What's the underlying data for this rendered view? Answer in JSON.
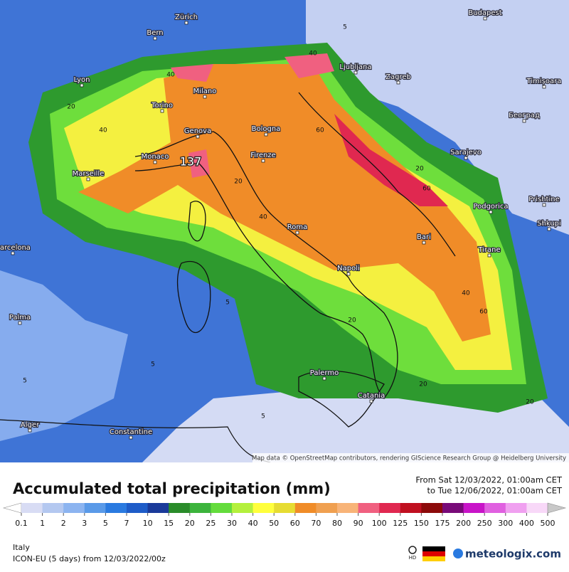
{
  "map": {
    "max_label": "137",
    "cities": [
      "Zürich",
      "Bern",
      "Budapest",
      "Lyon",
      "Milano",
      "Torino",
      "Genova",
      "Bologna",
      "Ljubljana",
      "Zagreb",
      "Timișoara",
      "Београд",
      "Firenze",
      "Monaco",
      "Marseille",
      "Sarajevo",
      "Podgorica",
      "Prishtine",
      "Shkupi",
      "Roma",
      "Tirane",
      "Bari",
      "Napoli",
      "Palma",
      "Palermo",
      "Catania",
      "Alger",
      "Constantine",
      "Barcelona"
    ],
    "contour_labels": [
      "5",
      "20",
      "40",
      "60",
      "40",
      "20",
      "5",
      "40",
      "60",
      "20",
      "40",
      "5",
      "20",
      "60",
      "40",
      "20",
      "5",
      "20",
      "5"
    ],
    "attribution": "Map data © OpenStreetMap contributors, rendering GIScience Research Group @ Heidelberg University"
  },
  "legend": {
    "title": "Accumulated total precipitation (mm)",
    "period_from": "From Sat 12/03/2022, 01:00am CET",
    "period_to": "to Tue 12/06/2022, 01:00am CET",
    "values": [
      0.1,
      1,
      2,
      3,
      5,
      7,
      10,
      15,
      20,
      25,
      30,
      40,
      50,
      60,
      70,
      80,
      90,
      100,
      125,
      150,
      175,
      200,
      250,
      300,
      400,
      500
    ],
    "colors": [
      "#ffffff",
      "#d8dcf4",
      "#b4c8f0",
      "#8cb4f0",
      "#5a9ae8",
      "#2a7ae0",
      "#1e5cc8",
      "#1a3a9a",
      "#2a8c2a",
      "#3cb43c",
      "#64dc3c",
      "#b4f03c",
      "#ffff3c",
      "#e6dc32",
      "#f08c28",
      "#f0a050",
      "#f8b478",
      "#f06080",
      "#e02850",
      "#c01020",
      "#8c0a0a",
      "#780a78",
      "#c814c8",
      "#e060e0",
      "#f0a0f0",
      "#f8d8f8",
      "#c8c8c8"
    ]
  },
  "footer": {
    "region": "Italy",
    "model": "ICON-EU (5 days) from 12/03/2022/00z",
    "hd": "HD",
    "brand": "meteologix.com"
  }
}
